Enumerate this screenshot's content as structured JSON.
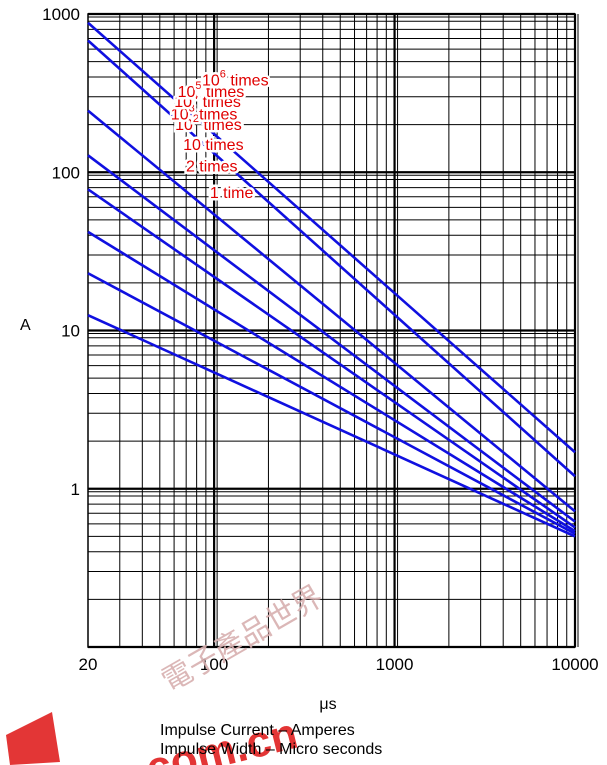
{
  "chart_data": {
    "type": "line",
    "xlabel": "μs",
    "ylabel": "A",
    "x_scale": "log",
    "y_scale": "log",
    "xlim": [
      20,
      10000
    ],
    "ylim": [
      0.1,
      1000
    ],
    "x_ticks": [
      {
        "value": 20,
        "label": "20"
      },
      {
        "value": 100,
        "label": "100"
      },
      {
        "value": 1000,
        "label": "1000"
      },
      {
        "value": 10000,
        "label": "10000"
      }
    ],
    "y_ticks": [
      {
        "value": 1000,
        "label": "1000"
      },
      {
        "value": 100,
        "label": "100"
      },
      {
        "value": 10,
        "label": "10"
      },
      {
        "value": 1,
        "label": "1"
      }
    ],
    "grid": true,
    "series": [
      {
        "name": "1 time",
        "base": "1 time",
        "exp": "",
        "suffix": "",
        "x": [
          20,
          10000
        ],
        "y": [
          880,
          1.7
        ],
        "label_at": [
          125,
          73
        ]
      },
      {
        "name": "2 times",
        "base": "2 times",
        "exp": "",
        "suffix": "",
        "x": [
          20,
          10000
        ],
        "y": [
          680,
          1.2
        ],
        "label_at": [
          97,
          107
        ]
      },
      {
        "name": "10 times",
        "base": "10 times",
        "exp": "",
        "suffix": "",
        "x": [
          20,
          10000
        ],
        "y": [
          245,
          0.72
        ],
        "label_at": [
          99,
          146
        ]
      },
      {
        "name": "10^2 times",
        "base": "10",
        "exp": "2",
        "suffix": " times",
        "x": [
          20,
          10000
        ],
        "y": [
          128,
          0.62
        ],
        "label_at": [
          93,
          196
        ]
      },
      {
        "name": "10^3 times",
        "base": "10",
        "exp": "3",
        "suffix": " times",
        "x": [
          20,
          10000
        ],
        "y": [
          78,
          0.57
        ],
        "label_at": [
          88,
          229
        ]
      },
      {
        "name": "10^4 times",
        "base": "10",
        "exp": "4",
        "suffix": " times",
        "x": [
          20,
          10000
        ],
        "y": [
          42,
          0.54
        ],
        "label_at": [
          92,
          273
        ]
      },
      {
        "name": "10^5 times",
        "base": "10",
        "exp": "5",
        "suffix": " times",
        "x": [
          20,
          10000
        ],
        "y": [
          23,
          0.52
        ],
        "label_at": [
          96,
          316
        ]
      },
      {
        "name": "10^6 times",
        "base": "10",
        "exp": "6",
        "suffix": " times",
        "x": [
          20,
          10000
        ],
        "y": [
          12.5,
          0.5
        ],
        "label_at": [
          131,
          375
        ]
      }
    ],
    "line_color": "#1010e0",
    "label_color": "#e00000"
  },
  "captions": {
    "line1": "Impulse Current – Amperes",
    "line2": "Impulse Width – Micro seconds"
  },
  "watermark": {
    "text": "com.cn",
    "color": "#e02020"
  }
}
